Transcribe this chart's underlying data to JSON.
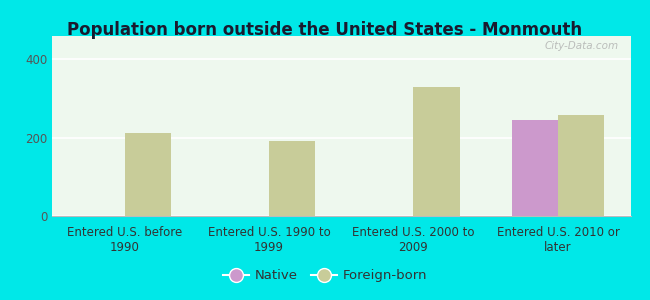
{
  "title": "Population born outside the United States - Monmouth",
  "categories": [
    "Entered U.S. before\n1990",
    "Entered U.S. 1990 to\n1999",
    "Entered U.S. 2000 to\n2009",
    "Entered U.S. 2010 or\nlater"
  ],
  "native_values": [
    0,
    0,
    0,
    245
  ],
  "foreign_born_values": [
    213,
    191,
    329,
    258
  ],
  "native_color": "#cc99cc",
  "foreign_born_color": "#c8cc99",
  "background_outer": "#00e8e8",
  "background_plot": "#eef8ee",
  "ylim": [
    0,
    460
  ],
  "yticks": [
    0,
    200,
    400
  ],
  "bar_width": 0.32,
  "title_fontsize": 12,
  "tick_fontsize": 8.5,
  "legend_fontsize": 9.5,
  "watermark_text": "City-Data.com"
}
